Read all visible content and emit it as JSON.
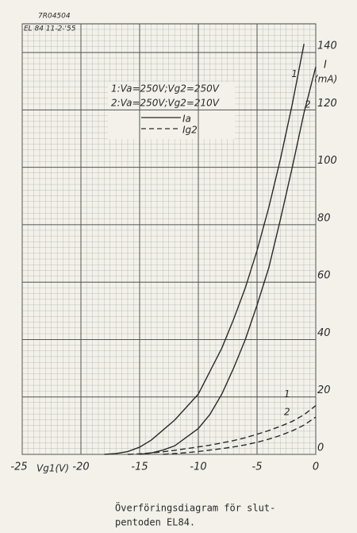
{
  "chart_data": {
    "type": "line",
    "stamp": [
      "7R04504",
      "EL 84 11-2-'55"
    ],
    "x_label": "Vg1(V)",
    "y_label": [
      "I",
      "(mA)"
    ],
    "x": [
      -18,
      -17,
      -16,
      -15,
      -14,
      -13,
      -12,
      -11,
      -10,
      -9,
      -8,
      -7,
      -6,
      -5,
      -4,
      -3,
      -2,
      -1,
      0
    ],
    "series": [
      {
        "name": "1",
        "color": "#2a2a2a",
        "dashed": false,
        "values": [
          0,
          0.3,
          1,
          2.5,
          5,
          8.5,
          12,
          16.5,
          21,
          29,
          37,
          47,
          58,
          71,
          86,
          103,
          122,
          143,
          null
        ]
      },
      {
        "name": "2",
        "color": "#2a2a2a",
        "dashed": false,
        "values": [
          null,
          null,
          null,
          0,
          0.5,
          1.5,
          3,
          6,
          9,
          14,
          21,
          30,
          40,
          52,
          65,
          82,
          100,
          119,
          135
        ]
      },
      {
        "name": "1",
        "color": "#2a2a2a",
        "dashed": true,
        "values": [
          null,
          null,
          0,
          0.2,
          0.5,
          0.9,
          1.4,
          2,
          2.6,
          3.2,
          4,
          4.8,
          5.8,
          7,
          8.3,
          9.8,
          11.5,
          13.8,
          17
        ]
      },
      {
        "name": "2",
        "color": "#2a2a2a",
        "dashed": true,
        "values": [
          null,
          null,
          null,
          null,
          null,
          0,
          0.3,
          0.6,
          1,
          1.5,
          2,
          2.6,
          3.3,
          4.2,
          5.3,
          6.6,
          8.2,
          10.2,
          13
        ]
      }
    ],
    "legend_notes": [
      "1:Va=250V;Vg2=250V",
      "2:Va=250V;Vg2=210V"
    ],
    "line_styles": [
      {
        "label": "Ia",
        "dashed": false
      },
      {
        "label": "Ig2",
        "dashed": true
      }
    ],
    "xlim": [
      -25,
      0
    ],
    "ylim": [
      0,
      150
    ],
    "xticks": [
      -25,
      -20,
      -15,
      -10,
      -5,
      0
    ],
    "yticks": [
      0,
      20,
      40,
      60,
      80,
      100,
      120,
      140
    ],
    "grid": true,
    "caption": [
      "Överföringsdiagram för slut-",
      "pentoden EL84."
    ]
  }
}
